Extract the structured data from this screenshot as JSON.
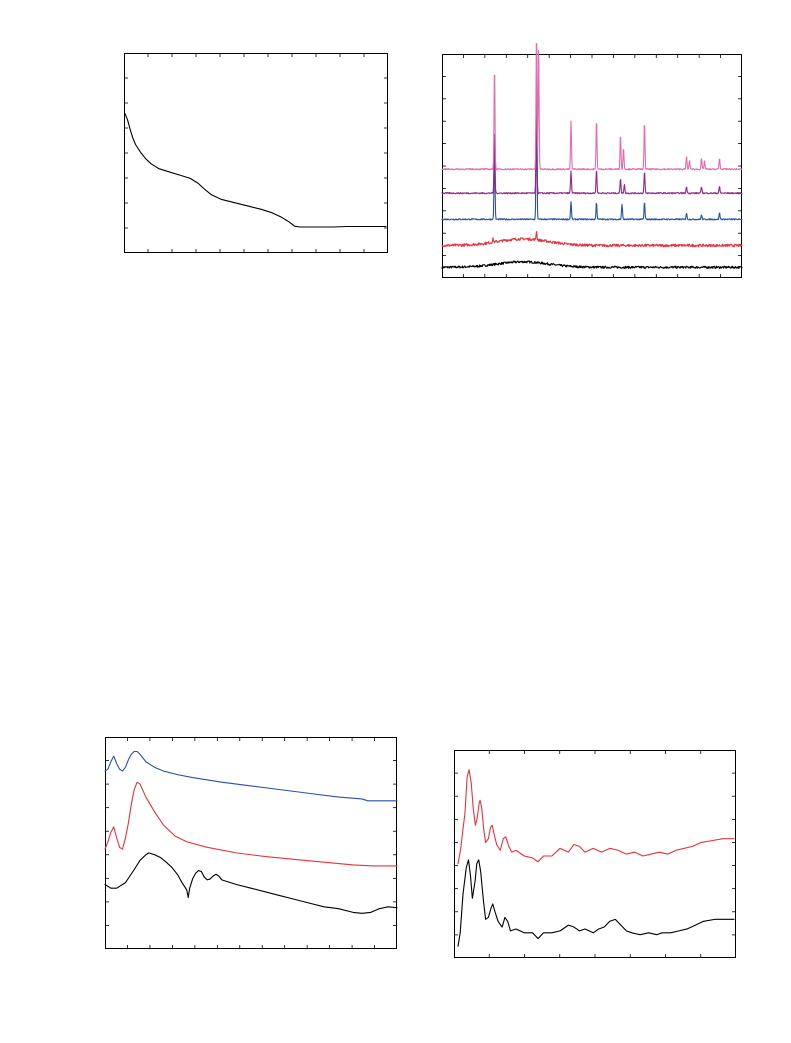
{
  "chart_data": [
    {
      "id": "tga",
      "type": "line",
      "title": "",
      "xlabel": "",
      "ylabel": "",
      "xlim": [
        0,
        100
      ],
      "ylim": [
        0,
        100
      ],
      "grid": false,
      "x_minor_ticks": 11,
      "y_minor_ticks": 8,
      "series": [
        {
          "color": "#000000",
          "points": [
            [
              0,
              70
            ],
            [
              1,
              66
            ],
            [
              2,
              60
            ],
            [
              3,
              55
            ],
            [
              4,
              51
            ],
            [
              6,
              46
            ],
            [
              8,
              42
            ],
            [
              10,
              39
            ],
            [
              13,
              36
            ],
            [
              17,
              34
            ],
            [
              21,
              32
            ],
            [
              25,
              30
            ],
            [
              28,
              27
            ],
            [
              30,
              24
            ],
            [
              33,
              20
            ],
            [
              37,
              17
            ],
            [
              42,
              15
            ],
            [
              47,
              13
            ],
            [
              52,
              11
            ],
            [
              56,
              9
            ],
            [
              60,
              6
            ],
            [
              63,
              3
            ],
            [
              65,
              0.5
            ],
            [
              67,
              0
            ],
            [
              71,
              0
            ],
            [
              75,
              0
            ],
            [
              80,
              0
            ],
            [
              85,
              0.3
            ],
            [
              90,
              0.3
            ],
            [
              95,
              0.3
            ],
            [
              100,
              0.3
            ]
          ]
        }
      ]
    },
    {
      "id": "xrd",
      "type": "line",
      "title": "",
      "xlabel": "",
      "ylabel": "",
      "xlim": [
        0,
        100
      ],
      "ylim": [
        0,
        100
      ],
      "grid": false,
      "x_minor_ticks": 14,
      "y_minor_ticks": 10,
      "series": [
        {
          "color": "#000000",
          "baseline": 4,
          "noise": 0.5,
          "hump": {
            "center": 27,
            "width": 12,
            "height": 2.5
          },
          "peaks": []
        },
        {
          "color": "#e8323c",
          "baseline": 14,
          "noise": 0.6,
          "hump": {
            "center": 27,
            "width": 12,
            "height": 3
          },
          "peaks": [
            [
              31.5,
              4
            ],
            [
              17,
              1.5
            ]
          ]
        },
        {
          "color": "#2c4fa8",
          "baseline": 26,
          "noise": 0.3,
          "hump": null,
          "peaks": [
            [
              17.5,
              34
            ],
            [
              31.5,
              54
            ],
            [
              43,
              8
            ],
            [
              51.5,
              8
            ],
            [
              60,
              7
            ],
            [
              67.5,
              8
            ],
            [
              81.5,
              3
            ],
            [
              86.5,
              2
            ],
            [
              92.5,
              3
            ]
          ]
        },
        {
          "color": "#93278f",
          "baseline": 38,
          "noise": 0.3,
          "hump": null,
          "peaks": [
            [
              17.5,
              30
            ],
            [
              31.5,
              50
            ],
            [
              43,
              10
            ],
            [
              51.5,
              11
            ],
            [
              59.5,
              7
            ],
            [
              60.8,
              4
            ],
            [
              67.5,
              10
            ],
            [
              81.5,
              3
            ],
            [
              86.5,
              3
            ],
            [
              92.5,
              3
            ]
          ]
        },
        {
          "color": "#e36bb0",
          "baseline": 49,
          "noise": 0.3,
          "hump": null,
          "peaks": [
            [
              17.5,
              48
            ],
            [
              31.5,
              64
            ],
            [
              32.2,
              58
            ],
            [
              43,
              22
            ],
            [
              51.5,
              23
            ],
            [
              59.5,
              16
            ],
            [
              60.5,
              10
            ],
            [
              67.5,
              22
            ],
            [
              81.5,
              6
            ],
            [
              82.5,
              4
            ],
            [
              86.5,
              5
            ],
            [
              87.5,
              4
            ],
            [
              92.5,
              5
            ]
          ]
        }
      ]
    },
    {
      "id": "uvvis",
      "type": "line",
      "title": "",
      "xlabel": "",
      "ylabel": "",
      "xlim": [
        0,
        100
      ],
      "ylim": [
        0,
        100
      ],
      "grid": false,
      "x_minor_ticks": 13,
      "y_minor_ticks": 9,
      "series": [
        {
          "color": "#2c4fa8",
          "points": [
            [
              0,
              86
            ],
            [
              1,
              87
            ],
            [
              2,
              91
            ],
            [
              3,
              94
            ],
            [
              4,
              90
            ],
            [
              5,
              87
            ],
            [
              6,
              86
            ],
            [
              7,
              88
            ],
            [
              8,
              92
            ],
            [
              9,
              95
            ],
            [
              10,
              96.5
            ],
            [
              11,
              96.5
            ],
            [
              12,
              95
            ],
            [
              14,
              91
            ],
            [
              17,
              88
            ],
            [
              20,
              86
            ],
            [
              25,
              84
            ],
            [
              30,
              82.5
            ],
            [
              40,
              80
            ],
            [
              50,
              78
            ],
            [
              60,
              76
            ],
            [
              70,
              74
            ],
            [
              80,
              72
            ],
            [
              88,
              71
            ],
            [
              90,
              70
            ],
            [
              95,
              70
            ],
            [
              100,
              70
            ]
          ]
        },
        {
          "color": "#e8323c",
          "points": [
            [
              0,
              44
            ],
            [
              1,
              48
            ],
            [
              2,
              53
            ],
            [
              3,
              56
            ],
            [
              4,
              50
            ],
            [
              5,
              45
            ],
            [
              6,
              44
            ],
            [
              7,
              50
            ],
            [
              8,
              58
            ],
            [
              9,
              68
            ],
            [
              10,
              76
            ],
            [
              11,
              80
            ],
            [
              12,
              79
            ],
            [
              14,
              72
            ],
            [
              17,
              64
            ],
            [
              20,
              57
            ],
            [
              24,
              51
            ],
            [
              28,
              48
            ],
            [
              35,
              45
            ],
            [
              45,
              42
            ],
            [
              55,
              40
            ],
            [
              65,
              38.5
            ],
            [
              75,
              37
            ],
            [
              85,
              35.5
            ],
            [
              92,
              35
            ],
            [
              100,
              35
            ]
          ]
        },
        {
          "color": "#000000",
          "points": [
            [
              0,
              25
            ],
            [
              2,
              23
            ],
            [
              4,
              23
            ],
            [
              7,
              26
            ],
            [
              10,
              33
            ],
            [
              12,
              38
            ],
            [
              14,
              41
            ],
            [
              15,
              42
            ],
            [
              17,
              41
            ],
            [
              19,
              39.5
            ],
            [
              21,
              37
            ],
            [
              23,
              34
            ],
            [
              25,
              30
            ],
            [
              26,
              27
            ],
            [
              27,
              24.5
            ],
            [
              28,
              22
            ],
            [
              28.5,
              18
            ],
            [
              29,
              23
            ],
            [
              30,
              28
            ],
            [
              31,
              31
            ],
            [
              32,
              32.5
            ],
            [
              33,
              32
            ],
            [
              34,
              29
            ],
            [
              35,
              27.5
            ],
            [
              36,
              28
            ],
            [
              37,
              29.5
            ],
            [
              38,
              30.5
            ],
            [
              39,
              29.5
            ],
            [
              40,
              27.5
            ],
            [
              45,
              25
            ],
            [
              50,
              23
            ],
            [
              55,
              21
            ],
            [
              60,
              19
            ],
            [
              65,
              17
            ],
            [
              70,
              15
            ],
            [
              75,
              13
            ],
            [
              80,
              12
            ],
            [
              85,
              10
            ],
            [
              88,
              9.5
            ],
            [
              91,
              10
            ],
            [
              94,
              12
            ],
            [
              97,
              13
            ],
            [
              100,
              12.5
            ]
          ]
        }
      ]
    },
    {
      "id": "exafs",
      "type": "line",
      "title": "",
      "xlabel": "",
      "ylabel": "",
      "xlim": [
        0,
        100
      ],
      "ylim": [
        0,
        100
      ],
      "grid": false,
      "x_minor_ticks": 8,
      "y_minor_ticks": 9,
      "series": [
        {
          "color": "#e8323c",
          "points": [
            [
              0,
              46
            ],
            [
              1,
              54
            ],
            [
              1.8,
              64
            ],
            [
              2.5,
              72
            ],
            [
              3.3,
              91
            ],
            [
              4,
              95
            ],
            [
              4.8,
              88
            ],
            [
              5.5,
              75
            ],
            [
              6.3,
              66
            ],
            [
              7,
              70
            ],
            [
              7.6,
              77
            ],
            [
              8,
              79
            ],
            [
              8.6,
              75
            ],
            [
              9.3,
              64
            ],
            [
              10,
              57
            ],
            [
              11,
              59
            ],
            [
              11.8,
              65
            ],
            [
              12.4,
              66
            ],
            [
              13,
              62
            ],
            [
              14,
              56
            ],
            [
              15.3,
              53
            ],
            [
              16.4,
              59
            ],
            [
              17.3,
              60
            ],
            [
              18.4,
              55
            ],
            [
              19.5,
              52
            ],
            [
              21,
              53
            ],
            [
              24,
              50
            ],
            [
              27,
              49
            ],
            [
              29,
              47
            ],
            [
              31,
              50
            ],
            [
              34,
              50
            ],
            [
              37,
              54
            ],
            [
              40,
              52
            ],
            [
              42,
              56
            ],
            [
              44,
              55
            ],
            [
              46,
              52
            ],
            [
              49,
              54
            ],
            [
              52,
              52
            ],
            [
              55,
              54
            ],
            [
              58,
              53
            ],
            [
              61,
              51
            ],
            [
              64,
              52
            ],
            [
              67,
              50
            ],
            [
              70,
              51
            ],
            [
              73,
              52
            ],
            [
              76,
              51
            ],
            [
              79,
              53
            ],
            [
              82,
              54
            ],
            [
              85,
              55
            ],
            [
              88,
              57
            ],
            [
              92,
              58
            ],
            [
              96,
              59
            ],
            [
              100,
              59
            ]
          ]
        },
        {
          "color": "#000000",
          "points": [
            [
              0,
              3
            ],
            [
              0.8,
              10
            ],
            [
              1.8,
              30
            ],
            [
              3,
              44
            ],
            [
              3.8,
              48
            ],
            [
              4.5,
              40
            ],
            [
              5.2,
              28
            ],
            [
              6.2,
              37
            ],
            [
              6.8,
              46
            ],
            [
              7.5,
              48
            ],
            [
              8.2,
              42
            ],
            [
              9.2,
              27
            ],
            [
              10,
              17
            ],
            [
              11,
              18
            ],
            [
              12,
              23
            ],
            [
              12.6,
              25
            ],
            [
              13.4,
              21
            ],
            [
              14.5,
              16
            ],
            [
              16,
              13
            ],
            [
              17,
              18
            ],
            [
              18,
              16
            ],
            [
              19,
              11
            ],
            [
              21,
              12
            ],
            [
              24,
              10
            ],
            [
              27,
              10
            ],
            [
              29,
              7
            ],
            [
              31,
              10
            ],
            [
              34,
              10
            ],
            [
              37,
              11
            ],
            [
              40,
              14
            ],
            [
              42,
              13
            ],
            [
              44,
              11
            ],
            [
              46,
              12
            ],
            [
              49,
              10
            ],
            [
              51,
              12
            ],
            [
              53,
              13
            ],
            [
              55,
              16
            ],
            [
              57,
              17
            ],
            [
              59,
              14
            ],
            [
              61,
              11
            ],
            [
              63,
              10
            ],
            [
              66,
              9
            ],
            [
              69,
              10
            ],
            [
              72,
              9
            ],
            [
              74,
              10
            ],
            [
              77,
              10
            ],
            [
              80,
              11
            ],
            [
              83,
              12
            ],
            [
              86,
              14
            ],
            [
              89,
              16
            ],
            [
              93,
              17
            ],
            [
              97,
              17
            ],
            [
              100,
              17
            ]
          ]
        }
      ]
    }
  ]
}
